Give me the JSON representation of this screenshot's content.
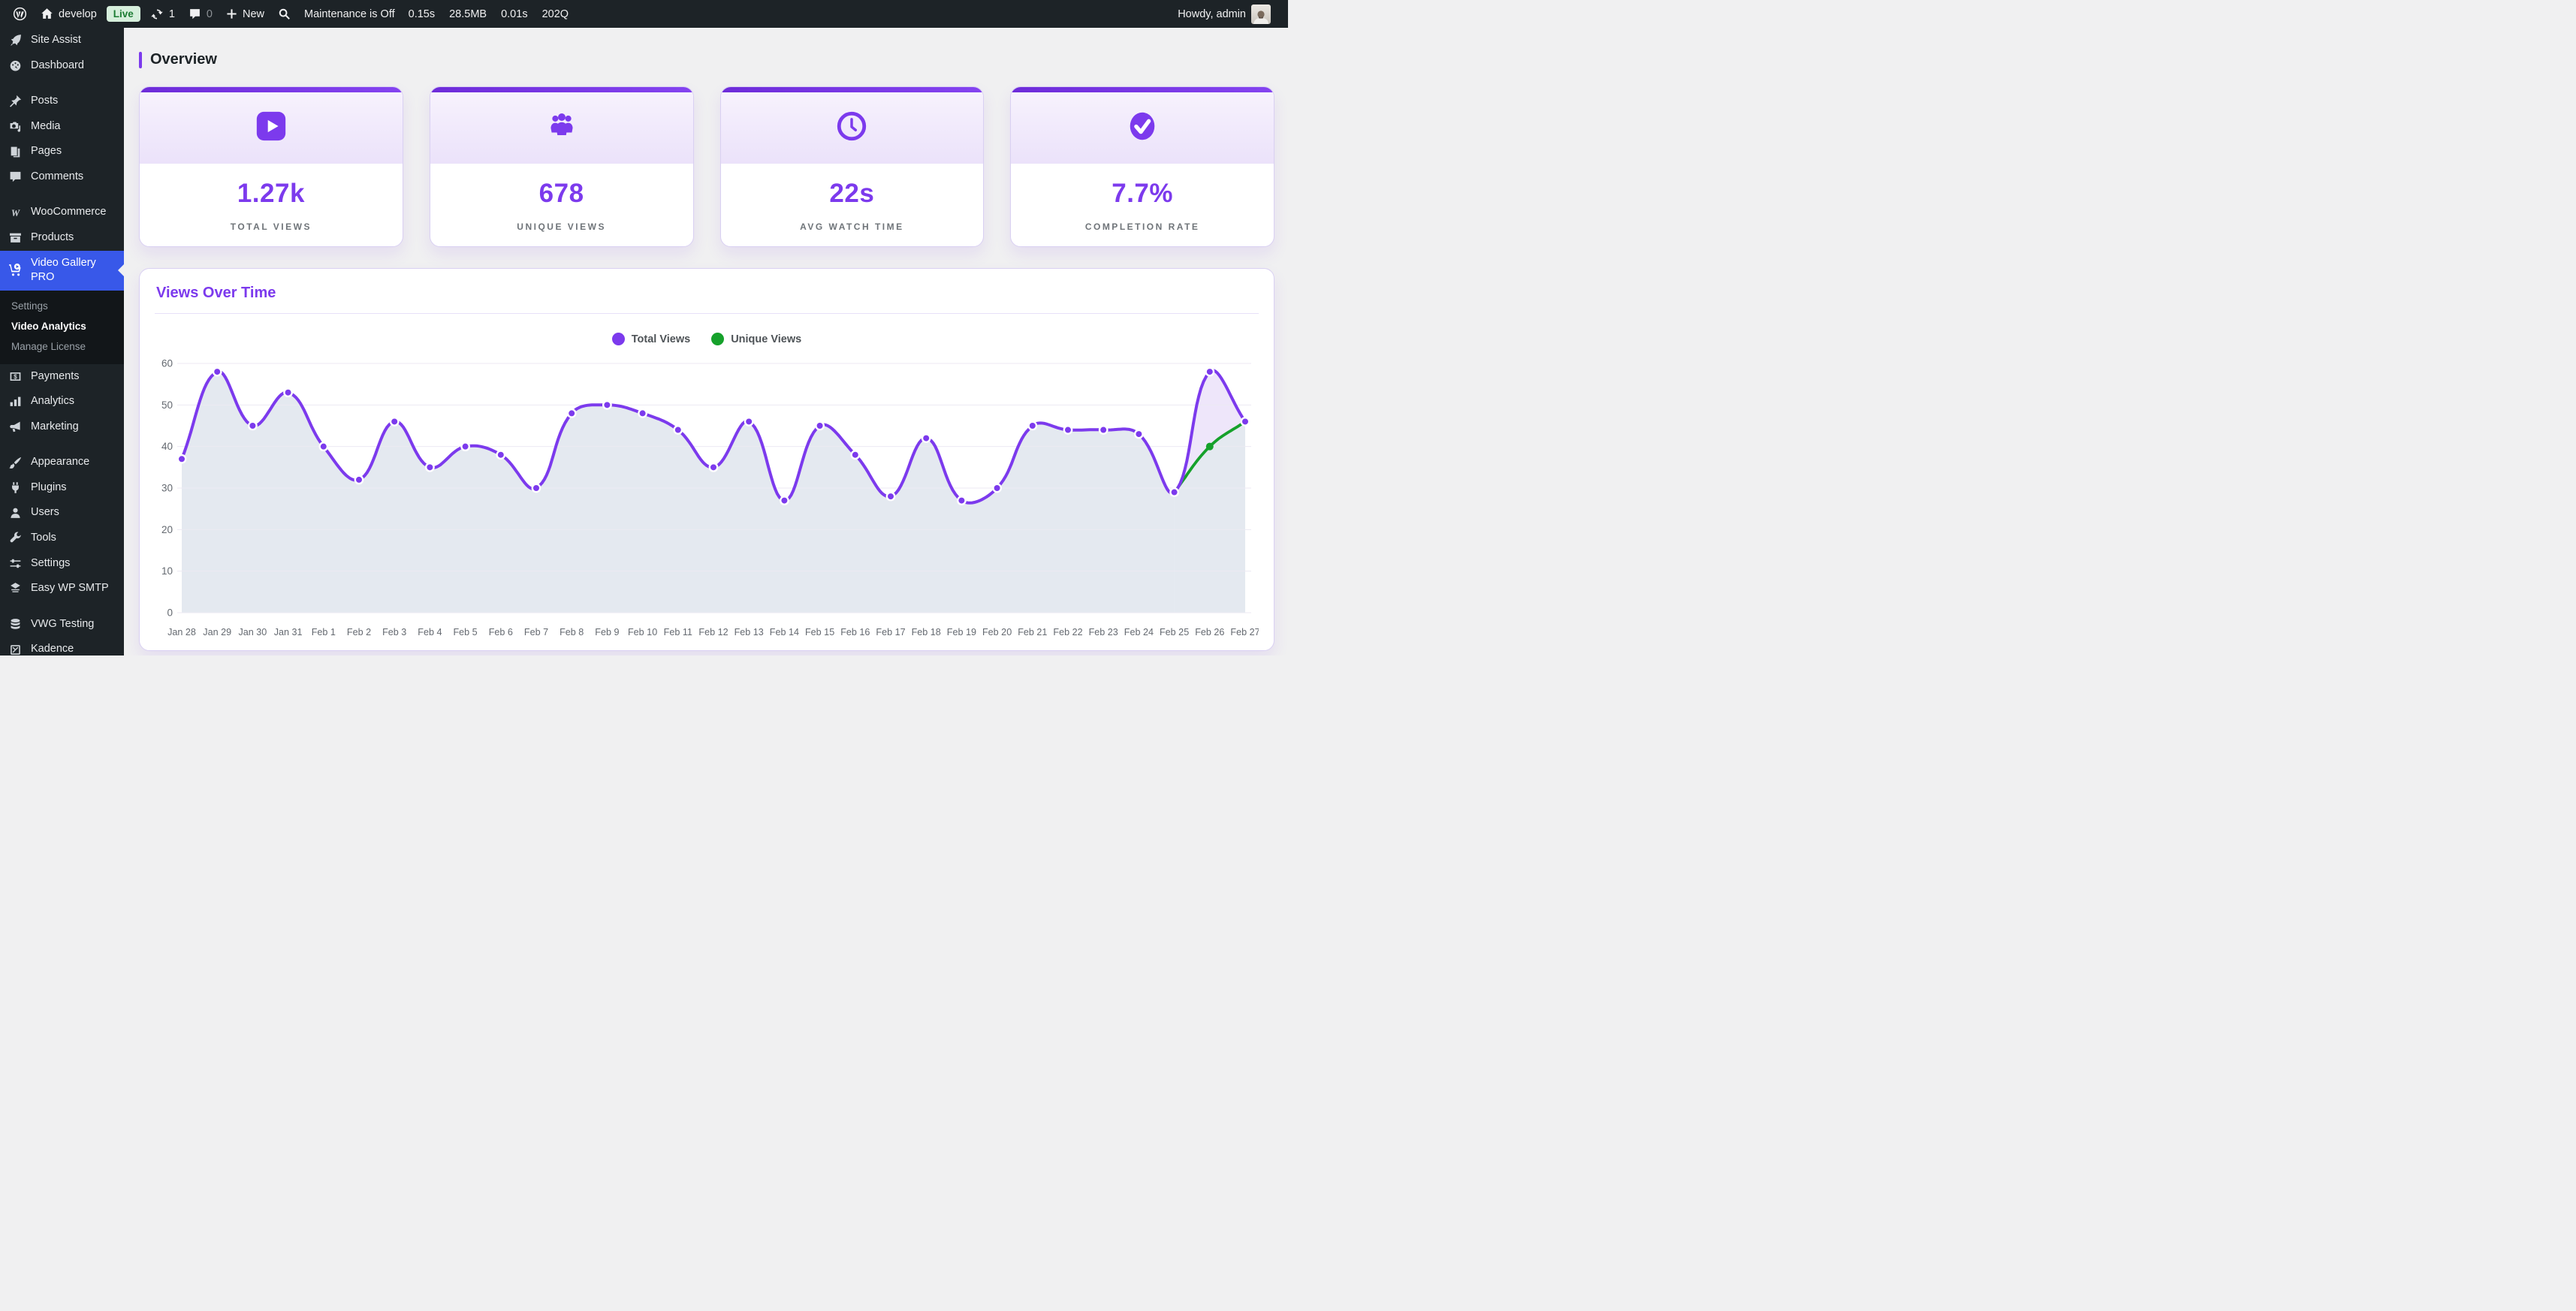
{
  "colors": {
    "accent": "#7c3aed",
    "green": "#16a12b",
    "active_menu_bg": "#3858e9",
    "area_fill": "#dfe5ed",
    "between_fill": "#ece3f9",
    "grid_line": "#eceaf3",
    "tick_text": "#646970"
  },
  "admin_bar": {
    "site_name": "develop",
    "live_badge": "Live",
    "updates_count": "1",
    "comments_count": "0",
    "new_label": "New",
    "maintenance_status": "Maintenance is Off",
    "perf_stats": [
      "0.15s",
      "28.5MB",
      "0.01s",
      "202Q"
    ],
    "howdy": "Howdy, admin"
  },
  "sidebar": {
    "items": [
      {
        "label": "Site Assist",
        "icon": "rocket"
      },
      {
        "label": "Dashboard",
        "icon": "dashboard"
      },
      {
        "gap": true
      },
      {
        "label": "Posts",
        "icon": "pin"
      },
      {
        "label": "Media",
        "icon": "media"
      },
      {
        "label": "Pages",
        "icon": "pages"
      },
      {
        "label": "Comments",
        "icon": "comment"
      },
      {
        "gap": true
      },
      {
        "label": "WooCommerce",
        "icon": "woocommerce"
      },
      {
        "label": "Products",
        "icon": "box"
      },
      {
        "label": "Video Gallery PRO",
        "icon": "video-cart",
        "active": true,
        "submenu": [
          {
            "label": "Settings"
          },
          {
            "label": "Video Analytics",
            "current": true
          },
          {
            "label": "Manage License"
          }
        ]
      },
      {
        "label": "Payments",
        "icon": "payments"
      },
      {
        "label": "Analytics",
        "icon": "bar-chart"
      },
      {
        "label": "Marketing",
        "icon": "megaphone"
      },
      {
        "gap": true
      },
      {
        "label": "Appearance",
        "icon": "brush"
      },
      {
        "label": "Plugins",
        "icon": "plug"
      },
      {
        "label": "Users",
        "icon": "user"
      },
      {
        "label": "Tools",
        "icon": "wrench"
      },
      {
        "label": "Settings",
        "icon": "sliders"
      },
      {
        "label": "Easy WP SMTP",
        "icon": "mail"
      },
      {
        "gap": true
      },
      {
        "label": "VWG Testing",
        "icon": "database"
      },
      {
        "label": "Kadence",
        "icon": "kadence"
      }
    ]
  },
  "overview": {
    "title": "Overview",
    "cards": [
      {
        "icon": "play",
        "value": "1.27k",
        "label": "TOTAL VIEWS"
      },
      {
        "icon": "users",
        "value": "678",
        "label": "UNIQUE VIEWS"
      },
      {
        "icon": "clock",
        "value": "22s",
        "label": "AVG WATCH TIME"
      },
      {
        "icon": "check",
        "value": "7.7%",
        "label": "COMPLETION RATE"
      }
    ]
  },
  "chart_card": {
    "title": "Views Over Time"
  },
  "chart_data": {
    "type": "line",
    "title": "Views Over Time",
    "x_labels": [
      "Jan 28",
      "Jan 29",
      "Jan 30",
      "Jan 31",
      "Feb 1",
      "Feb 2",
      "Feb 3",
      "Feb 4",
      "Feb 5",
      "Feb 6",
      "Feb 7",
      "Feb 8",
      "Feb 9",
      "Feb 10",
      "Feb 11",
      "Feb 12",
      "Feb 13",
      "Feb 14",
      "Feb 15",
      "Feb 16",
      "Feb 17",
      "Feb 18",
      "Feb 19",
      "Feb 20",
      "Feb 21",
      "Feb 22",
      "Feb 23",
      "Feb 24",
      "Feb 25",
      "Feb 26",
      "Feb 27"
    ],
    "series": [
      {
        "name": "Total Views",
        "color": "#7c3aed",
        "values": [
          37,
          58,
          45,
          53,
          40,
          32,
          46,
          35,
          40,
          38,
          30,
          48,
          50,
          48,
          44,
          35,
          46,
          27,
          45,
          38,
          28,
          42,
          27,
          30,
          45,
          44,
          44,
          43,
          29,
          58,
          46
        ]
      },
      {
        "name": "Unique Views",
        "color": "#16a12b",
        "values": [
          null,
          null,
          null,
          null,
          null,
          null,
          null,
          null,
          null,
          null,
          null,
          null,
          null,
          null,
          null,
          null,
          null,
          null,
          null,
          null,
          null,
          null,
          null,
          null,
          null,
          null,
          null,
          null,
          29,
          40,
          46
        ]
      }
    ],
    "ylim": [
      0,
      60
    ],
    "y_ticks": [
      0,
      10,
      20,
      30,
      40,
      50,
      60
    ],
    "grid": "horizontal",
    "legend_position": "top-center",
    "xlabel": "",
    "ylabel": ""
  }
}
